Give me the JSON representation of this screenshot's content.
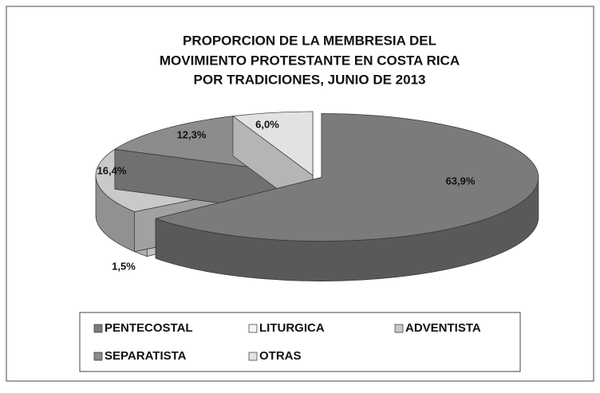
{
  "chart_data": {
    "type": "pie3d",
    "title": [
      "PROPORCION DE LA MEMBRESIA DEL",
      "MOVIMIENTO PROTESTANTE EN COSTA RICA",
      "POR TRADICIONES, JUNIO DE 2013"
    ],
    "categories": [
      "PENTECOSTAL",
      "LITURGICA",
      "ADVENTISTA",
      "SEPARATISTA",
      "OTRAS"
    ],
    "values": [
      63.9,
      1.5,
      16.4,
      12.3,
      6.0
    ],
    "value_labels": [
      "63,9%",
      "1,5%",
      "16,4%",
      "12,3%",
      "6,0%"
    ],
    "colors": [
      "#7b7b7b",
      "#f4f4f4",
      "#c9c9c9",
      "#8c8c8c",
      "#e2e2e2"
    ],
    "legend": "bottom"
  }
}
